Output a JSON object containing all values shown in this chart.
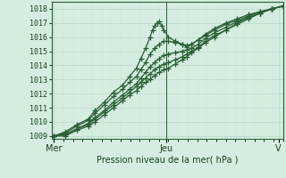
{
  "xlabel": "Pression niveau de la mer( hPa )",
  "bg_color": "#d4ede0",
  "grid_color_major": "#b8d8c8",
  "grid_color_minor": "#c8e4d4",
  "line_color": "#2a5e35",
  "ylim": [
    1008.8,
    1018.5
  ],
  "yticks": [
    1009,
    1010,
    1011,
    1012,
    1013,
    1014,
    1015,
    1016,
    1017,
    1018
  ],
  "xtick_labels": [
    "Mer",
    "Jeu",
    "V"
  ],
  "xtick_pos": [
    0.0,
    0.49,
    0.98
  ],
  "xlabel_fontsize": 7,
  "ytick_fontsize": 6,
  "xtick_fontsize": 7,
  "series": [
    {
      "points": [
        [
          0,
          1009
        ],
        [
          0.05,
          1009.3
        ],
        [
          0.1,
          1009.8
        ],
        [
          0.15,
          1010.2
        ],
        [
          0.18,
          1010.8
        ],
        [
          0.22,
          1011.4
        ],
        [
          0.26,
          1012.1
        ],
        [
          0.3,
          1012.6
        ],
        [
          0.33,
          1013.2
        ],
        [
          0.36,
          1013.8
        ],
        [
          0.38,
          1014.5
        ],
        [
          0.4,
          1015.2
        ],
        [
          0.42,
          1016.0
        ],
        [
          0.43,
          1016.5
        ],
        [
          0.44,
          1016.8
        ],
        [
          0.45,
          1017.0
        ],
        [
          0.46,
          1017.1
        ],
        [
          0.47,
          1016.8
        ],
        [
          0.48,
          1016.5
        ],
        [
          0.5,
          1016.0
        ],
        [
          0.53,
          1015.7
        ],
        [
          0.56,
          1015.5
        ],
        [
          0.58,
          1015.3
        ],
        [
          0.6,
          1015.5
        ],
        [
          0.63,
          1015.8
        ],
        [
          0.66,
          1016.2
        ],
        [
          0.7,
          1016.6
        ],
        [
          0.75,
          1017.0
        ],
        [
          0.8,
          1017.3
        ],
        [
          0.85,
          1017.6
        ],
        [
          0.9,
          1017.8
        ],
        [
          0.95,
          1018.0
        ],
        [
          1.0,
          1018.2
        ]
      ]
    },
    {
      "points": [
        [
          0,
          1009
        ],
        [
          0.05,
          1009.2
        ],
        [
          0.1,
          1009.7
        ],
        [
          0.15,
          1010.1
        ],
        [
          0.18,
          1010.6
        ],
        [
          0.22,
          1011.2
        ],
        [
          0.26,
          1011.8
        ],
        [
          0.3,
          1012.3
        ],
        [
          0.33,
          1012.8
        ],
        [
          0.36,
          1013.2
        ],
        [
          0.38,
          1013.7
        ],
        [
          0.4,
          1014.2
        ],
        [
          0.42,
          1014.8
        ],
        [
          0.44,
          1015.2
        ],
        [
          0.46,
          1015.5
        ],
        [
          0.48,
          1015.7
        ],
        [
          0.5,
          1015.7
        ],
        [
          0.53,
          1015.6
        ],
        [
          0.56,
          1015.5
        ],
        [
          0.58,
          1015.4
        ],
        [
          0.6,
          1015.5
        ],
        [
          0.63,
          1015.8
        ],
        [
          0.66,
          1016.1
        ],
        [
          0.7,
          1016.5
        ],
        [
          0.75,
          1016.9
        ],
        [
          0.8,
          1017.2
        ],
        [
          0.85,
          1017.5
        ],
        [
          0.9,
          1017.8
        ],
        [
          0.95,
          1018.0
        ],
        [
          1.0,
          1018.2
        ]
      ]
    },
    {
      "points": [
        [
          0,
          1009
        ],
        [
          0.05,
          1009.1
        ],
        [
          0.1,
          1009.5
        ],
        [
          0.15,
          1009.9
        ],
        [
          0.18,
          1010.3
        ],
        [
          0.22,
          1010.8
        ],
        [
          0.26,
          1011.4
        ],
        [
          0.3,
          1011.9
        ],
        [
          0.33,
          1012.3
        ],
        [
          0.36,
          1012.7
        ],
        [
          0.38,
          1013.1
        ],
        [
          0.4,
          1013.5
        ],
        [
          0.42,
          1013.9
        ],
        [
          0.44,
          1014.2
        ],
        [
          0.46,
          1014.5
        ],
        [
          0.48,
          1014.7
        ],
        [
          0.5,
          1014.8
        ],
        [
          0.53,
          1014.9
        ],
        [
          0.56,
          1015.0
        ],
        [
          0.58,
          1015.1
        ],
        [
          0.6,
          1015.2
        ],
        [
          0.63,
          1015.5
        ],
        [
          0.66,
          1015.9
        ],
        [
          0.7,
          1016.3
        ],
        [
          0.75,
          1016.7
        ],
        [
          0.8,
          1017.1
        ],
        [
          0.85,
          1017.4
        ],
        [
          0.9,
          1017.7
        ],
        [
          0.95,
          1018.0
        ],
        [
          1.0,
          1018.2
        ]
      ]
    },
    {
      "points": [
        [
          0,
          1009
        ],
        [
          0.05,
          1009.1
        ],
        [
          0.1,
          1009.5
        ],
        [
          0.15,
          1009.8
        ],
        [
          0.18,
          1010.2
        ],
        [
          0.22,
          1010.7
        ],
        [
          0.26,
          1011.2
        ],
        [
          0.3,
          1011.7
        ],
        [
          0.33,
          1012.1
        ],
        [
          0.36,
          1012.5
        ],
        [
          0.38,
          1012.8
        ],
        [
          0.4,
          1013.1
        ],
        [
          0.42,
          1013.4
        ],
        [
          0.44,
          1013.7
        ],
        [
          0.46,
          1013.9
        ],
        [
          0.48,
          1014.1
        ],
        [
          0.5,
          1014.2
        ],
        [
          0.53,
          1014.4
        ],
        [
          0.56,
          1014.6
        ],
        [
          0.58,
          1014.8
        ],
        [
          0.6,
          1015.0
        ],
        [
          0.63,
          1015.3
        ],
        [
          0.66,
          1015.7
        ],
        [
          0.7,
          1016.1
        ],
        [
          0.75,
          1016.5
        ],
        [
          0.8,
          1017.0
        ],
        [
          0.85,
          1017.4
        ],
        [
          0.9,
          1017.7
        ],
        [
          0.95,
          1018.0
        ],
        [
          1.0,
          1018.2
        ]
      ]
    },
    {
      "points": [
        [
          0,
          1009
        ],
        [
          0.05,
          1009.0
        ],
        [
          0.1,
          1009.4
        ],
        [
          0.15,
          1009.7
        ],
        [
          0.18,
          1010.0
        ],
        [
          0.22,
          1010.5
        ],
        [
          0.26,
          1011.0
        ],
        [
          0.3,
          1011.5
        ],
        [
          0.33,
          1011.9
        ],
        [
          0.36,
          1012.2
        ],
        [
          0.38,
          1012.5
        ],
        [
          0.4,
          1012.8
        ],
        [
          0.42,
          1013.0
        ],
        [
          0.44,
          1013.3
        ],
        [
          0.46,
          1013.5
        ],
        [
          0.48,
          1013.7
        ],
        [
          0.5,
          1013.8
        ],
        [
          0.53,
          1014.1
        ],
        [
          0.56,
          1014.4
        ],
        [
          0.58,
          1014.6
        ],
        [
          0.6,
          1014.9
        ],
        [
          0.63,
          1015.2
        ],
        [
          0.66,
          1015.6
        ],
        [
          0.7,
          1016.0
        ],
        [
          0.75,
          1016.5
        ],
        [
          0.8,
          1016.9
        ],
        [
          0.85,
          1017.3
        ],
        [
          0.9,
          1017.7
        ],
        [
          0.95,
          1018.0
        ],
        [
          1.0,
          1018.2
        ]
      ]
    }
  ]
}
